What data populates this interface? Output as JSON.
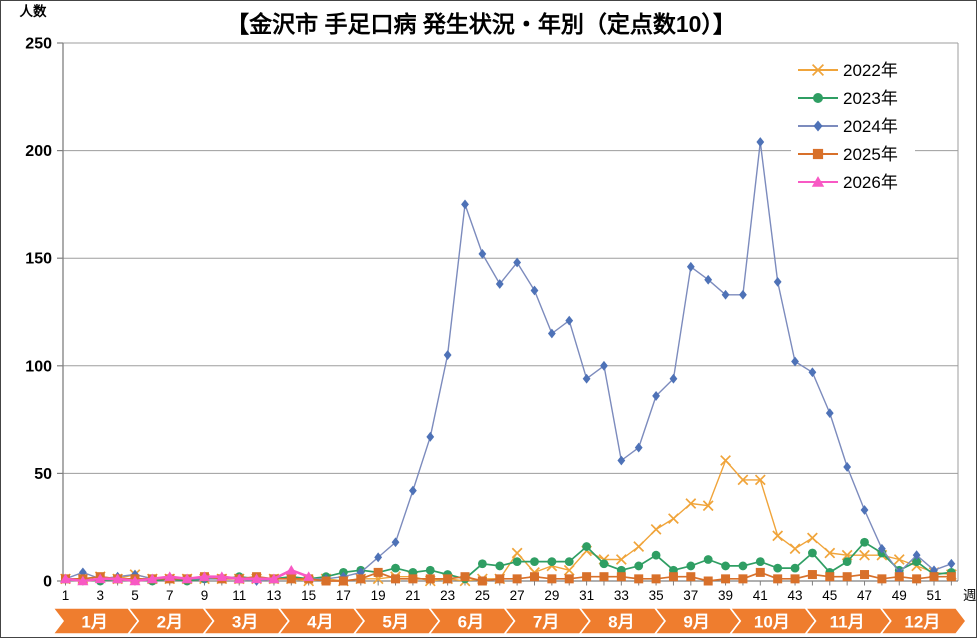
{
  "title": "【金沢市 手足口病 発生状況・年別（定点数10）】",
  "y_axis": {
    "label": "人数",
    "ticks": [
      0,
      50,
      100,
      150,
      200,
      250
    ]
  },
  "x_axis": {
    "label": "週",
    "tick_labels": [
      "1",
      "3",
      "5",
      "7",
      "9",
      "11",
      "13",
      "15",
      "17",
      "19",
      "21",
      "23",
      "25",
      "27",
      "29",
      "31",
      "33",
      "35",
      "37",
      "39",
      "41",
      "43",
      "45",
      "47",
      "49",
      "51"
    ]
  },
  "months": [
    "1月",
    "2月",
    "3月",
    "4月",
    "5月",
    "6月",
    "7月",
    "8月",
    "9月",
    "10月",
    "11月",
    "12月"
  ],
  "colors": {
    "month_band": "#EF7D2E",
    "gridline": "#9D9D9D",
    "axis": "#7F7F7F",
    "legend_background": "#FFFFFF",
    "title_text": "#000000"
  },
  "chart_data": {
    "type": "line",
    "x": [
      1,
      2,
      3,
      4,
      5,
      6,
      7,
      8,
      9,
      10,
      11,
      12,
      13,
      14,
      15,
      16,
      17,
      18,
      19,
      20,
      21,
      22,
      23,
      24,
      25,
      26,
      27,
      28,
      29,
      30,
      31,
      32,
      33,
      34,
      35,
      36,
      37,
      38,
      39,
      40,
      41,
      42,
      43,
      44,
      45,
      46,
      47,
      48,
      49,
      50,
      51,
      52
    ],
    "title": "【金沢市 手足口病 発生状況・年別（定点数10）】",
    "xlabel": "週",
    "ylabel": "人数",
    "ylim": [
      0,
      250
    ],
    "grid": true,
    "legend_position": "top-right",
    "series": [
      {
        "name": "2022年",
        "marker": "x",
        "color": "#F0A43A",
        "marker_color": "#F0A43A",
        "values": [
          1,
          1,
          2,
          1,
          3,
          1,
          1,
          1,
          1,
          1,
          1,
          1,
          1,
          1,
          0,
          1,
          0,
          1,
          1,
          2,
          2,
          0,
          1,
          0,
          1,
          1,
          13,
          4,
          7,
          5,
          14,
          10,
          10,
          16,
          24,
          29,
          36,
          35,
          56,
          47,
          47,
          21,
          15,
          20,
          13,
          12,
          12,
          12,
          10,
          7,
          4,
          3
        ]
      },
      {
        "name": "2023年",
        "marker": "circle",
        "color": "#2F9E63",
        "marker_color": "#2F9E63",
        "values": [
          1,
          1,
          0,
          1,
          1,
          0,
          1,
          0,
          1,
          1,
          2,
          1,
          1,
          2,
          1,
          2,
          4,
          5,
          4,
          6,
          4,
          5,
          3,
          1,
          8,
          7,
          9,
          9,
          9,
          9,
          16,
          8,
          5,
          7,
          12,
          5,
          7,
          10,
          7,
          7,
          9,
          6,
          6,
          13,
          4,
          9,
          18,
          13,
          5,
          9,
          3,
          4
        ]
      },
      {
        "name": "2024年",
        "marker": "diamond",
        "color": "#7C8BBD",
        "marker_color": "#4E72B7",
        "values": [
          1,
          4,
          1,
          2,
          3,
          1,
          1,
          1,
          1,
          1,
          1,
          0,
          1,
          1,
          1,
          1,
          2,
          4,
          11,
          18,
          42,
          67,
          105,
          175,
          152,
          138,
          148,
          135,
          115,
          121,
          94,
          100,
          56,
          62,
          86,
          94,
          146,
          140,
          133,
          133,
          204,
          139,
          102,
          97,
          78,
          53,
          33,
          15,
          4,
          12,
          5,
          8
        ]
      },
      {
        "name": "2025年",
        "marker": "square",
        "color": "#D8702A",
        "marker_color": "#D8702A",
        "values": [
          1,
          1,
          2,
          1,
          1,
          1,
          1,
          1,
          2,
          1,
          1,
          2,
          1,
          1,
          1,
          0,
          0,
          1,
          4,
          1,
          1,
          1,
          1,
          2,
          0,
          1,
          1,
          2,
          1,
          1,
          2,
          2,
          2,
          1,
          1,
          2,
          2,
          0,
          1,
          1,
          4,
          1,
          1,
          3,
          2,
          2,
          3,
          1,
          2,
          1,
          2,
          2
        ]
      },
      {
        "name": "2026年",
        "marker": "triangle",
        "color": "#F859C4",
        "marker_color": "#F859C4",
        "values": [
          1,
          0,
          1,
          1,
          0,
          1,
          2,
          1,
          2,
          2,
          1,
          1,
          1,
          5,
          2
        ]
      }
    ]
  }
}
